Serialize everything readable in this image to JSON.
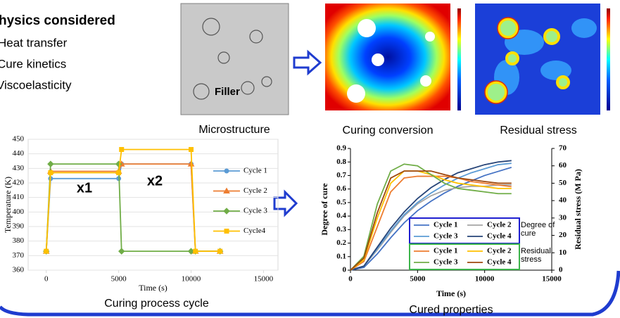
{
  "header": {
    "title": "hysics considered",
    "items": [
      "Heat transfer",
      "Cure kinetics",
      "Viscoelasticity"
    ]
  },
  "panels": {
    "microstructure": {
      "label": "Filler",
      "caption": "Microstructure"
    },
    "curing_conversion": {
      "caption": "Curing conversion"
    },
    "residual_stress": {
      "caption": "Residual stress"
    }
  },
  "chart_data": [
    {
      "type": "line",
      "caption": "Curing process cycle",
      "x_label": "Time (s)",
      "y_label": "Temperature (K)",
      "annotations": [
        "x1",
        "x2"
      ],
      "annotation_color": "#e8141b",
      "x": [
        0,
        300,
        5000,
        5200,
        10000,
        10300,
        12000
      ],
      "series": [
        {
          "name": "Cycle 1",
          "color": "#5b9bd5",
          "marker": "circle",
          "values": [
            373,
            423,
            423,
            433,
            433,
            373,
            373
          ]
        },
        {
          "name": "Cycle 2",
          "color": "#ed7d31",
          "marker": "triangle",
          "values": [
            373,
            428,
            428,
            433,
            433,
            373,
            373
          ]
        },
        {
          "name": "Cycle 3",
          "color": "#70ad47",
          "marker": "diamond",
          "values": [
            373,
            433,
            433,
            373,
            373,
            373,
            373
          ]
        },
        {
          "name": "Cycle4",
          "color": "#ffc000",
          "marker": "square",
          "values": [
            373,
            427,
            427,
            443,
            443,
            373,
            373
          ]
        }
      ],
      "xlim": [
        -1250,
        16000
      ],
      "xticks": [
        0,
        5000,
        10000,
        15000
      ],
      "ylim": [
        360,
        450
      ],
      "yticks": [
        360,
        370,
        380,
        390,
        400,
        410,
        420,
        430,
        440,
        450
      ],
      "grid": true,
      "legend": "right"
    },
    {
      "type": "line",
      "caption": "Cured properties",
      "x_label": "Time (s)",
      "y_label": "Degree of cure",
      "y2_label": "Residual stress (M Pa)",
      "x": [
        0,
        1000,
        2000,
        3000,
        4000,
        5000,
        6000,
        7000,
        8000,
        9000,
        10000,
        11000,
        12000
      ],
      "series": [
        {
          "name": "Cycle 1",
          "color": "#4472c4",
          "values": [
            0,
            0.02,
            0.12,
            0.24,
            0.35,
            0.44,
            0.51,
            0.57,
            0.62,
            0.66,
            0.7,
            0.73,
            0.76
          ]
        },
        {
          "name": "Cycle 2",
          "color": "#a5a5a5",
          "values": [
            0,
            0.03,
            0.15,
            0.28,
            0.4,
            0.49,
            0.55,
            0.59,
            0.61,
            0.62,
            0.62,
            0.63,
            0.63
          ]
        },
        {
          "name": "Cycle 3",
          "color": "#5b9bd5",
          "values": [
            0,
            0.03,
            0.16,
            0.29,
            0.41,
            0.5,
            0.57,
            0.63,
            0.68,
            0.72,
            0.75,
            0.78,
            0.79
          ]
        },
        {
          "name": "Cycle 4",
          "color": "#264478",
          "values": [
            0,
            0.03,
            0.17,
            0.31,
            0.43,
            0.53,
            0.61,
            0.67,
            0.72,
            0.75,
            0.78,
            0.8,
            0.81
          ]
        },
        {
          "name": "Cycle 1",
          "color": "#ed7d31",
          "axis": "y2",
          "values": [
            0,
            5,
            25,
            45,
            53,
            54,
            54,
            54,
            53,
            51,
            50,
            49,
            48
          ]
        },
        {
          "name": "Cycle 2",
          "color": "#ffc000",
          "axis": "y2",
          "values": [
            0,
            6,
            30,
            50,
            57,
            57,
            55,
            52,
            50,
            49,
            48,
            47,
            47
          ]
        },
        {
          "name": "Cycle 3",
          "color": "#70ad47",
          "axis": "y2",
          "values": [
            0,
            8,
            38,
            57,
            61,
            60,
            55,
            50,
            47,
            46,
            45,
            44,
            44
          ]
        },
        {
          "name": "Cycle 4",
          "color": "#9e480e",
          "axis": "y2",
          "values": [
            0,
            7,
            33,
            53,
            57,
            57,
            57,
            55,
            53,
            52,
            51,
            50,
            50
          ]
        }
      ],
      "xlim": [
        0,
        15000
      ],
      "xticks": [
        0,
        5000,
        10000,
        15000
      ],
      "ylim": [
        0,
        0.9
      ],
      "yticks": [
        0,
        0.1,
        0.2,
        0.3,
        0.4,
        0.5,
        0.6,
        0.7,
        0.8,
        0.9
      ],
      "y2lim": [
        0,
        70
      ],
      "y2ticks": [
        0,
        10,
        20,
        30,
        40,
        50,
        60,
        70
      ],
      "grid": false,
      "legend_groups": [
        {
          "title": "Degree of cure",
          "color": "#1f1fd0"
        },
        {
          "title": "Residual stress",
          "color": "#3cb44b"
        }
      ]
    }
  ]
}
